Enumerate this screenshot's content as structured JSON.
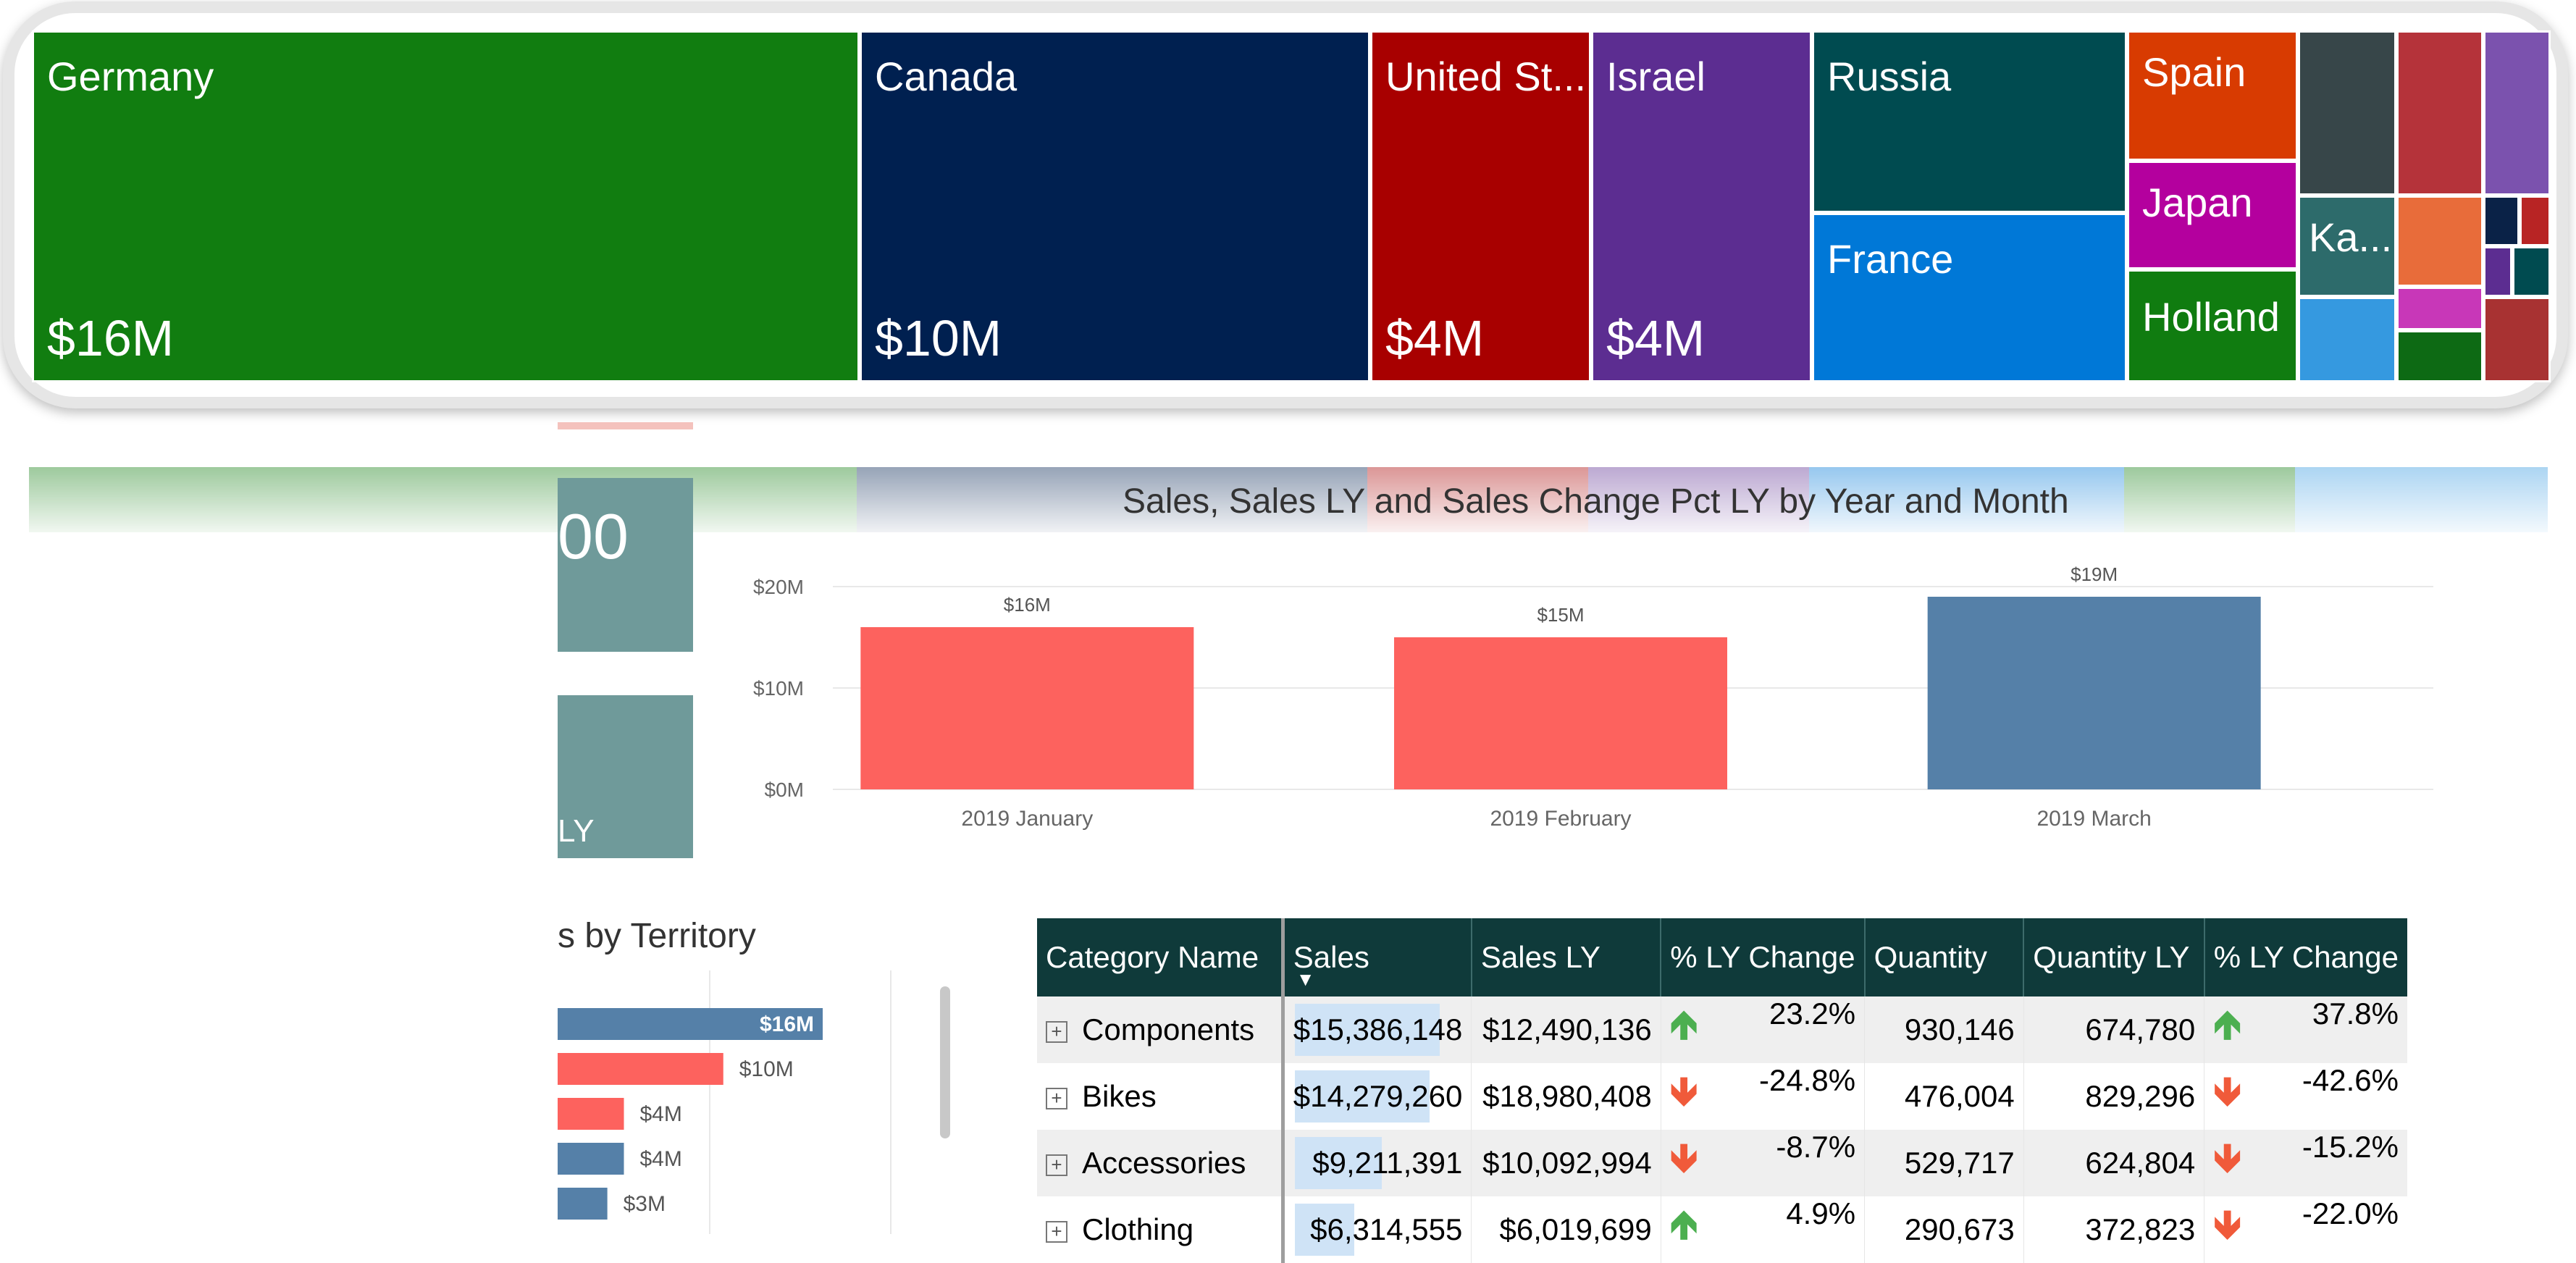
{
  "treemap": {
    "tiles": [
      {
        "name": "Germany",
        "value": "$16M",
        "color": "#117d10"
      },
      {
        "name": "Canada",
        "value": "$10M",
        "color": "#002050"
      },
      {
        "name": "United St...",
        "value": "$4M",
        "color": "#a80000"
      },
      {
        "name": "Israel",
        "value": "$4M",
        "color": "#5c2d91"
      },
      {
        "name": "Russia",
        "value": "",
        "color": "#004b50"
      },
      {
        "name": "France",
        "value": "",
        "color": "#0078d7"
      },
      {
        "name": "Spain",
        "value": "",
        "color": "#d83b01"
      },
      {
        "name": "Japan",
        "value": "",
        "color": "#b4009e"
      },
      {
        "name": "Holland",
        "value": "",
        "color": "#107c10"
      },
      {
        "name": "Ka...",
        "value": "",
        "color": "#2d6b6b"
      }
    ]
  },
  "cards": {
    "top_value_fragment": "00",
    "bottom_label_fragment": "LY"
  },
  "monthly_chart": {
    "title": "Sales, Sales LY and Sales Change Pct LY by Year and Month"
  },
  "chart_data": [
    {
      "type": "bar",
      "title": "Sales, Sales LY and Sales Change Pct LY by Year and Month",
      "categories": [
        "2019 January",
        "2019 February",
        "2019 March"
      ],
      "values": [
        16,
        15,
        19
      ],
      "data_labels": [
        "$16M",
        "$15M",
        "$19M"
      ],
      "colors": [
        "#fd625e",
        "#fd625e",
        "#5580a8"
      ],
      "yticks": [
        "$0M",
        "$10M",
        "$20M"
      ],
      "ylim": [
        0,
        20
      ],
      "unit": "$M"
    },
    {
      "type": "bar",
      "orientation": "horizontal",
      "title": "s by Territory",
      "values": [
        16,
        10,
        4,
        4,
        3
      ],
      "data_labels": [
        "$16M",
        "$10M",
        "$4M",
        "$4M",
        "$3M"
      ],
      "colors": [
        "#5580a8",
        "#fd625e",
        "#fd625e",
        "#5580a8",
        "#5580a8"
      ],
      "xlim": [
        0,
        16
      ]
    }
  ],
  "territory_chart": {
    "title": "s by Territory"
  },
  "matrix": {
    "headers": [
      "Category Name",
      "Sales",
      "Sales LY",
      "% LY Change",
      "Quantity",
      "Quantity LY",
      "% LY Change"
    ],
    "rows": [
      {
        "category": "Components",
        "sales": "$15,386,148",
        "sales_ly": "$12,490,136",
        "pct_sales": "23.2%",
        "sales_trend": "up",
        "qty": "930,146",
        "qty_ly": "674,780",
        "pct_qty": "37.8%",
        "qty_trend": "up",
        "sales_share": 1.0
      },
      {
        "category": "Bikes",
        "sales": "$14,279,260",
        "sales_ly": "$18,980,408",
        "pct_sales": "-24.8%",
        "sales_trend": "down",
        "qty": "476,004",
        "qty_ly": "829,296",
        "pct_qty": "-42.6%",
        "qty_trend": "down",
        "sales_share": 0.93
      },
      {
        "category": "Accessories",
        "sales": "$9,211,391",
        "sales_ly": "$10,092,994",
        "pct_sales": "-8.7%",
        "sales_trend": "down",
        "qty": "529,717",
        "qty_ly": "624,804",
        "pct_qty": "-15.2%",
        "qty_trend": "down",
        "sales_share": 0.6
      },
      {
        "category": "Clothing",
        "sales": "$6,314,555",
        "sales_ly": "$6,019,699",
        "pct_sales": "4.9%",
        "sales_trend": "up",
        "qty": "290,673",
        "qty_ly": "372,823",
        "pct_qty": "-22.0%",
        "qty_trend": "down",
        "sales_share": 0.41
      }
    ]
  }
}
